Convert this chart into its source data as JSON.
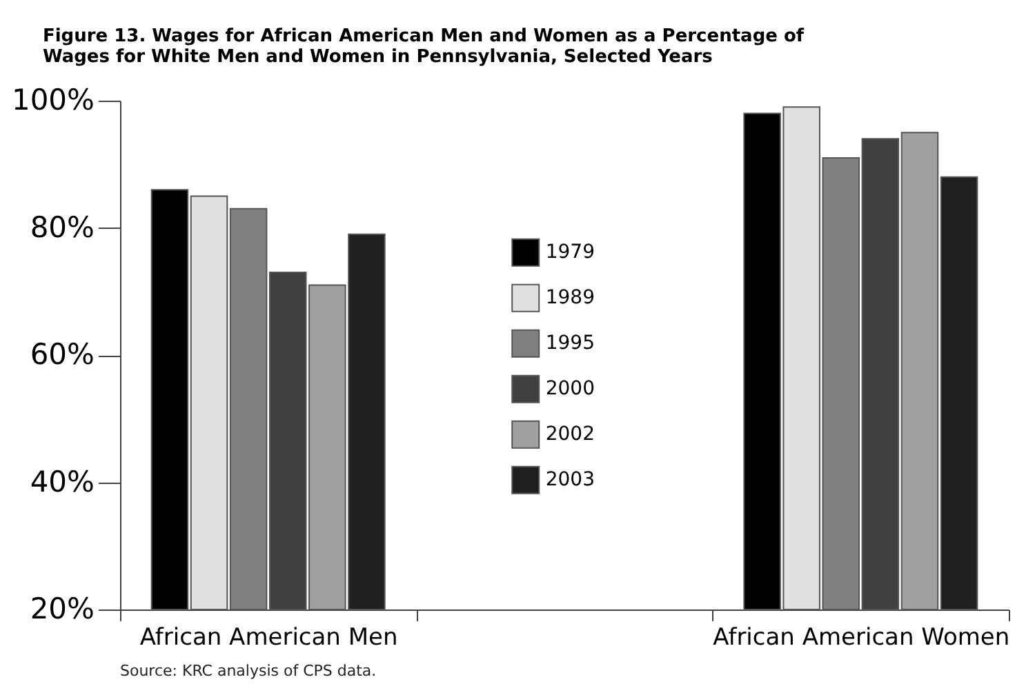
{
  "chart_data": {
    "type": "bar",
    "title": "Figure 13. Wages for African American Men and Women as a Percentage of Wages for White Men and Women in Pennsylvania, Selected Years",
    "categories": [
      "African American Men",
      null,
      "African American Women"
    ],
    "series": [
      {
        "name": "1979",
        "color": "#000000",
        "values": [
          86,
          null,
          98
        ]
      },
      {
        "name": "1989",
        "color": "#e0e0e0",
        "values": [
          85,
          null,
          99
        ]
      },
      {
        "name": "1995",
        "color": "#808080",
        "values": [
          83,
          null,
          91
        ]
      },
      {
        "name": "2000",
        "color": "#404040",
        "values": [
          73,
          null,
          94
        ]
      },
      {
        "name": "2002",
        "color": "#a0a0a0",
        "values": [
          71,
          null,
          95
        ]
      },
      {
        "name": "2003",
        "color": "#202020",
        "values": [
          79,
          null,
          88
        ]
      }
    ],
    "ylim": [
      20,
      100
    ],
    "yticks": [
      {
        "value": 20,
        "label": "20%"
      },
      {
        "value": 40,
        "label": "40%"
      },
      {
        "value": 60,
        "label": "60%"
      },
      {
        "value": 80,
        "label": "80%"
      },
      {
        "value": 100,
        "label": "100%"
      }
    ],
    "grid": false,
    "legend": "center",
    "annotations": [
      "Source: KRC analysis of CPS data."
    ]
  }
}
